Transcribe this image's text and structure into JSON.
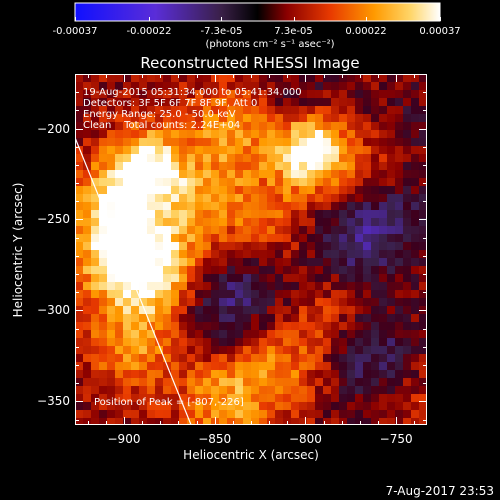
{
  "chart_data": {
    "type": "heatmap",
    "title": "Reconstructed RHESSI Image",
    "xlabel": "Heliocentric X (arcsec)",
    "ylabel": "Heliocentric Y (arcsec)",
    "xlim": [
      -927,
      -733
    ],
    "ylim": [
      -363,
      -170
    ],
    "x_ticks": [
      "-900",
      "-850",
      "-800",
      "-750"
    ],
    "x_tick_values": [
      -900,
      -850,
      -800,
      -750
    ],
    "y_ticks": [
      "-200",
      "-250",
      "-300",
      "-350"
    ],
    "y_tick_values": [
      -200,
      -250,
      -300,
      -350
    ],
    "colorbar": {
      "ticks": [
        "-0.00037",
        "-0.00022",
        "-7.3e-05",
        "7.3e-05",
        "0.00022",
        "0.00037"
      ],
      "tick_values": [
        -0.00037,
        -0.00022,
        -7.3e-05,
        7.3e-05,
        0.00022,
        0.00037
      ],
      "units": "(photons cm⁻² s⁻¹ asec⁻²)",
      "range": [
        -0.00037,
        0.00037
      ]
    },
    "annotations": {
      "time_range": "19-Aug-2015 05:31:34.000 to 05:41:34.000",
      "detectors": "Detectors: 3F 5F 6F 7F 8F 9F, Att 0",
      "energy": "Energy Range: 25.0 - 50.0 keV",
      "method": "Clean    Total counts: 2.24E+04",
      "peak": "Position of Peak = [-807,-226]"
    },
    "peak_position": [
      -807,
      -226
    ],
    "limb_line": [
      [
        -927,
        -205
      ],
      [
        -863,
        -363
      ]
    ],
    "emission_sources": [
      {
        "x": -797,
        "y": -212,
        "value": 0.00037
      },
      {
        "x": -888,
        "y": -220,
        "value": 0.0003
      },
      {
        "x": -905,
        "y": -245,
        "value": 0.00025
      },
      {
        "x": -900,
        "y": -275,
        "value": 0.00024
      },
      {
        "x": -880,
        "y": -280,
        "value": 0.0002
      },
      {
        "x": -860,
        "y": -240,
        "value": 0.00016
      },
      {
        "x": -840,
        "y": -200,
        "value": 0.00018
      },
      {
        "x": -820,
        "y": -250,
        "value": 0.00012
      },
      {
        "x": -780,
        "y": -300,
        "value": 0.00012
      },
      {
        "x": -815,
        "y": -330,
        "value": 0.00014
      },
      {
        "x": -845,
        "y": -350,
        "value": 0.00018
      },
      {
        "x": -895,
        "y": -320,
        "value": 0.00016
      },
      {
        "x": -760,
        "y": -220,
        "value": 0.0001
      },
      {
        "x": -760,
        "y": -340,
        "value": -8e-05
      },
      {
        "x": -850,
        "y": -300,
        "value": -0.00012
      },
      {
        "x": -830,
        "y": -285,
        "value": -0.0001
      },
      {
        "x": -775,
        "y": -265,
        "value": -0.00016
      },
      {
        "x": -765,
        "y": -315,
        "value": -0.00014
      },
      {
        "x": -750,
        "y": -245,
        "value": -0.00012
      },
      {
        "x": -745,
        "y": -200,
        "value": -8e-05
      },
      {
        "x": -805,
        "y": -185,
        "value": -8e-05
      },
      {
        "x": -740,
        "y": -350,
        "value": 8e-05
      }
    ]
  },
  "footer": {
    "timestamp": "7-Aug-2017 23:53"
  }
}
